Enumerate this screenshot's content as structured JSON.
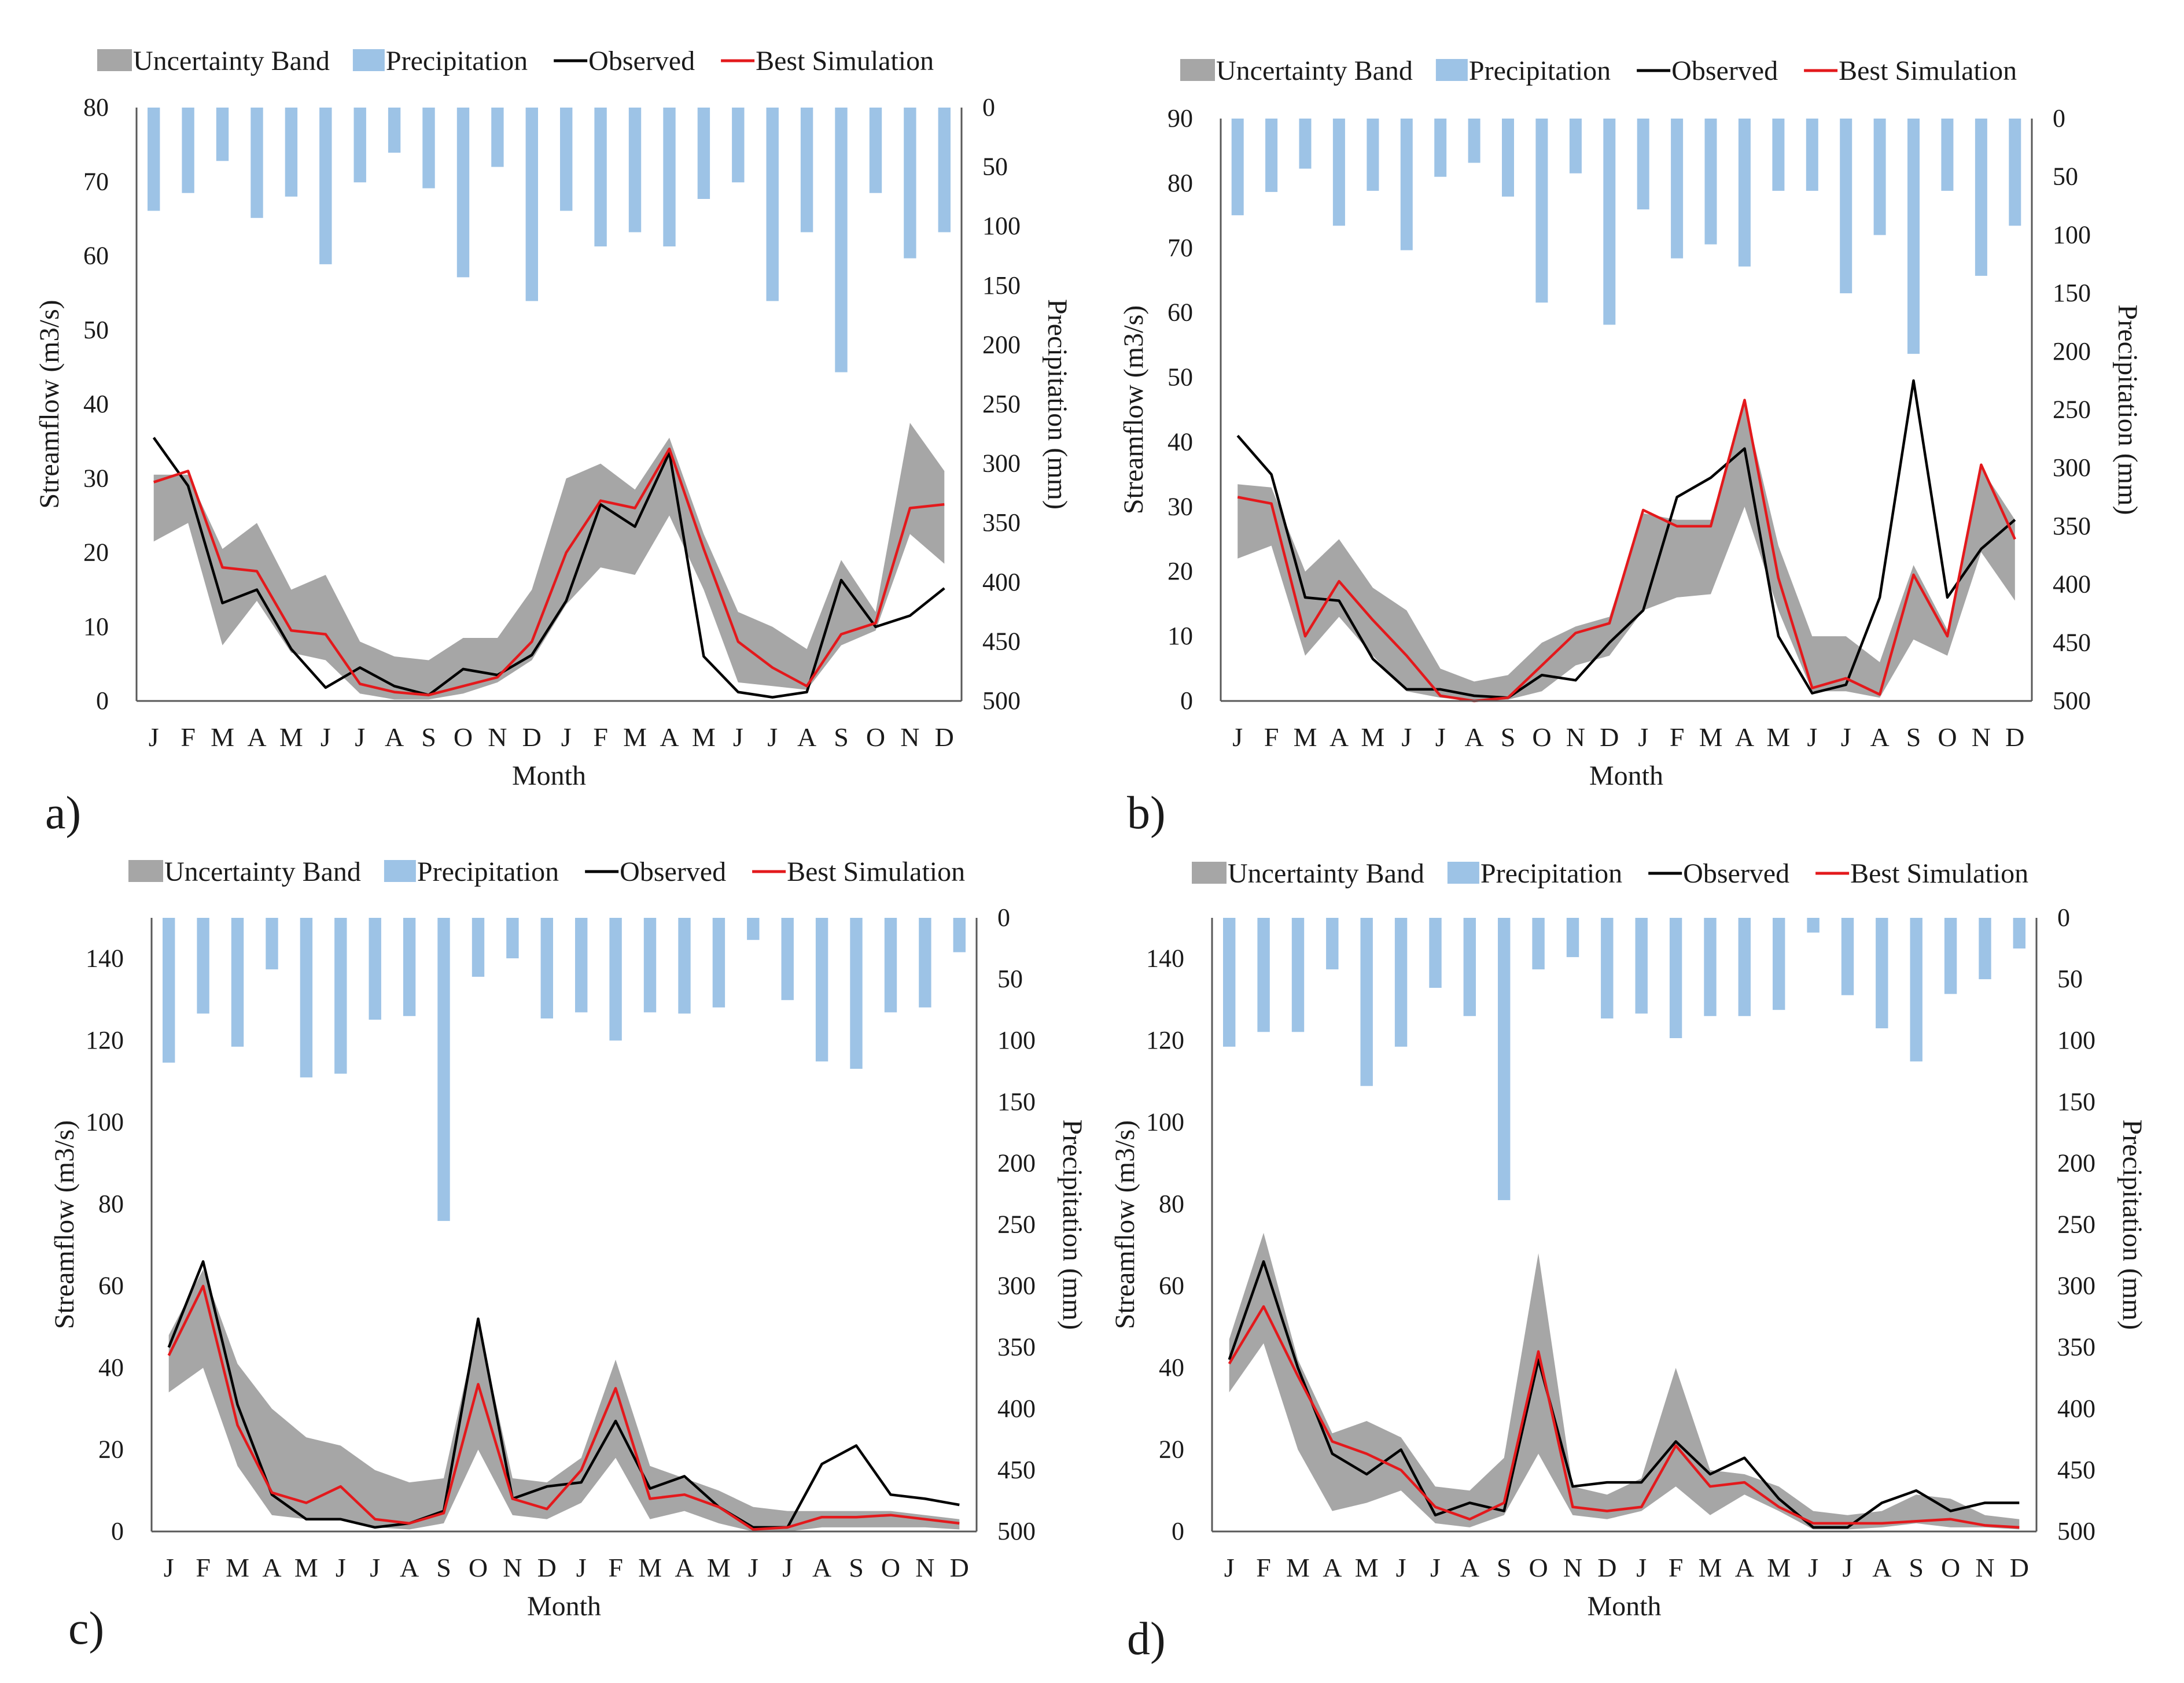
{
  "legend": {
    "band": "Uncertainty Band",
    "precip": "Precipitation",
    "observed": "Observed",
    "best": "Best Simulation"
  },
  "colors": {
    "band": "#a6a6a6",
    "precip": "#9dc3e6",
    "observed": "#000000",
    "best": "#e3191c"
  },
  "chart_data": [
    {
      "type": "line",
      "panel_label": "a)",
      "xlabel": "Month",
      "ylabel": "Streamflow (m3/s)",
      "y2label": "Precipitation (mm)",
      "categories": [
        "J",
        "F",
        "M",
        "A",
        "M",
        "J",
        "J",
        "A",
        "S",
        "O",
        "N",
        "D",
        "J",
        "F",
        "M",
        "A",
        "M",
        "J",
        "J",
        "A",
        "S",
        "O",
        "N",
        "D"
      ],
      "ylim": [
        0,
        80
      ],
      "yticks": [
        0,
        10,
        20,
        30,
        40,
        50,
        60,
        70,
        80
      ],
      "y2lim": [
        0,
        500
      ],
      "y2ticks": [
        0,
        50,
        100,
        150,
        200,
        250,
        300,
        350,
        400,
        450,
        500
      ],
      "precipitation": [
        87,
        72,
        45,
        93,
        75,
        132,
        63,
        38,
        68,
        143,
        50,
        163,
        87,
        117,
        105,
        117,
        77,
        63,
        163,
        105,
        223,
        72,
        127,
        105
      ],
      "observed": [
        35.5,
        29,
        13.2,
        15,
        7,
        1.8,
        4.5,
        2,
        0.8,
        4.3,
        3.5,
        6.2,
        13.5,
        26.5,
        23.5,
        33.5,
        6,
        1.2,
        0.5,
        1.2,
        16.3,
        10,
        11.5,
        15.2
      ],
      "best_simulation": [
        29.5,
        31,
        18,
        17.5,
        9.5,
        9,
        2.3,
        1.2,
        0.8,
        2,
        3.2,
        8,
        20,
        27,
        26,
        34,
        20.5,
        8,
        4.5,
        2,
        9,
        10.5,
        26,
        26.5
      ],
      "band_upper": [
        30.5,
        30.5,
        20.5,
        24,
        15,
        17,
        8,
        6,
        5.5,
        8.5,
        8.5,
        15,
        30,
        32,
        28.5,
        35.5,
        22.5,
        12,
        10,
        7,
        19,
        12,
        37.5,
        31
      ],
      "band_lower": [
        21.5,
        24,
        7.5,
        13.5,
        6.5,
        5.5,
        1,
        0.2,
        0.2,
        1,
        2.5,
        5.5,
        13,
        18,
        17,
        25,
        15,
        2.5,
        2,
        1.5,
        7.5,
        9.5,
        22.5,
        18.5
      ]
    },
    {
      "type": "line",
      "panel_label": "b)",
      "xlabel": "Month",
      "ylabel": "Streamflow (m3/s)",
      "y2label": "Precipitation (mm)",
      "categories": [
        "J",
        "F",
        "M",
        "A",
        "M",
        "J",
        "J",
        "A",
        "S",
        "O",
        "N",
        "D",
        "J",
        "F",
        "M",
        "A",
        "M",
        "J",
        "J",
        "A",
        "S",
        "O",
        "N",
        "D"
      ],
      "ylim": [
        0,
        90
      ],
      "yticks": [
        0,
        10,
        20,
        30,
        40,
        50,
        60,
        70,
        80,
        90
      ],
      "y2lim": [
        0,
        500
      ],
      "y2ticks": [
        0,
        50,
        100,
        150,
        200,
        250,
        300,
        350,
        400,
        450,
        500
      ],
      "precipitation": [
        83,
        63,
        43,
        92,
        62,
        113,
        50,
        38,
        67,
        158,
        47,
        177,
        78,
        120,
        108,
        127,
        62,
        62,
        150,
        100,
        202,
        62,
        135,
        92
      ],
      "observed": [
        41,
        35,
        16,
        15.5,
        6.5,
        1.8,
        1.8,
        0.8,
        0.5,
        4,
        3.2,
        9,
        14,
        31.5,
        34.5,
        39,
        10,
        1.2,
        2.5,
        16,
        49.5,
        16,
        23.5,
        28
      ],
      "best_simulation": [
        31.5,
        30.5,
        10,
        18.5,
        12.5,
        7,
        0.8,
        0,
        0.5,
        5.5,
        10.5,
        12,
        29.5,
        27,
        27,
        46.5,
        19,
        2,
        3.5,
        1,
        19.5,
        10,
        36.5,
        25
      ],
      "band_upper": [
        33.5,
        33,
        20,
        25,
        17.5,
        14,
        5,
        3,
        4,
        9,
        11.5,
        13,
        29,
        28,
        28,
        46,
        24,
        10,
        10,
        6,
        21,
        11,
        36,
        28
      ],
      "band_lower": [
        22,
        24,
        7,
        13,
        7,
        1.5,
        0.5,
        0,
        0.2,
        1.5,
        5.5,
        7,
        14,
        16,
        16.5,
        30,
        14,
        1.5,
        1.5,
        0.5,
        9.5,
        7,
        23,
        15.5
      ]
    },
    {
      "type": "line",
      "panel_label": "c)",
      "xlabel": "Month",
      "ylabel": "Streamflow (m3/s)",
      "y2label": "Precipitation (mm)",
      "categories": [
        "J",
        "F",
        "M",
        "A",
        "M",
        "J",
        "J",
        "A",
        "S",
        "O",
        "N",
        "D",
        "J",
        "F",
        "M",
        "A",
        "M",
        "J",
        "J",
        "A",
        "S",
        "O",
        "N",
        "D"
      ],
      "ylim": [
        0,
        150
      ],
      "yticks": [
        0,
        20,
        40,
        60,
        80,
        100,
        120,
        140
      ],
      "y2lim": [
        0,
        500
      ],
      "y2ticks": [
        0,
        50,
        100,
        150,
        200,
        250,
        300,
        350,
        400,
        450,
        500
      ],
      "precipitation": [
        118,
        78,
        105,
        42,
        130,
        127,
        83,
        80,
        247,
        48,
        33,
        82,
        77,
        100,
        77,
        78,
        73,
        18,
        67,
        117,
        123,
        77,
        73,
        28
      ],
      "observed": [
        45,
        66,
        31,
        9,
        3,
        3,
        1,
        2,
        5,
        52,
        8,
        11,
        12,
        27,
        10.5,
        13.5,
        6,
        1,
        1,
        16.5,
        21,
        9,
        8,
        6.5
      ],
      "best_simulation": [
        43,
        60,
        26,
        9.5,
        7,
        11,
        3,
        2,
        4.5,
        36,
        8,
        5.5,
        15,
        35,
        8,
        9,
        6,
        0.5,
        1,
        3.5,
        3.5,
        4,
        3,
        2
      ],
      "band_upper": [
        48,
        64,
        41,
        30,
        23,
        21,
        15,
        12,
        13,
        51,
        13,
        12,
        18,
        42,
        16,
        13,
        10,
        6,
        5,
        5,
        5,
        5,
        4,
        3
      ],
      "band_lower": [
        34,
        40,
        16,
        4,
        3,
        3,
        1,
        0.5,
        2,
        20,
        4,
        3,
        7,
        18,
        3,
        5,
        2,
        0,
        0,
        1,
        1,
        1,
        1,
        0.5
      ]
    },
    {
      "type": "line",
      "panel_label": "d)",
      "xlabel": "Month",
      "ylabel": "Streamflow (m3/s)",
      "y2label": "Precipitation (mm)",
      "categories": [
        "J",
        "F",
        "M",
        "A",
        "M",
        "J",
        "J",
        "A",
        "S",
        "O",
        "N",
        "D",
        "J",
        "F",
        "M",
        "A",
        "M",
        "J",
        "J",
        "A",
        "S",
        "O",
        "N",
        "D"
      ],
      "ylim": [
        0,
        150
      ],
      "yticks": [
        0,
        20,
        40,
        60,
        80,
        100,
        120,
        140
      ],
      "y2lim": [
        0,
        500
      ],
      "y2ticks": [
        0,
        50,
        100,
        150,
        200,
        250,
        300,
        350,
        400,
        450,
        500
      ],
      "precipitation": [
        105,
        93,
        93,
        42,
        137,
        105,
        57,
        80,
        230,
        42,
        32,
        82,
        78,
        98,
        80,
        80,
        75,
        12,
        63,
        90,
        117,
        62,
        50,
        25
      ],
      "observed": [
        42,
        66,
        40,
        19,
        14,
        20,
        4,
        7,
        5,
        42,
        11,
        12,
        12,
        22,
        14,
        18,
        8,
        1,
        1,
        7,
        10,
        5,
        7,
        7
      ],
      "best_simulation": [
        41,
        55,
        38,
        22,
        19,
        15,
        6,
        3,
        7,
        44,
        6,
        5,
        6,
        21,
        11,
        12,
        6,
        2,
        2,
        2,
        2.5,
        3,
        1.5,
        1
      ],
      "band_upper": [
        47,
        73,
        42,
        24,
        27,
        23,
        11,
        10,
        18,
        68,
        11,
        9,
        13,
        40,
        15,
        14,
        11,
        5,
        4,
        5,
        9,
        8,
        4,
        3
      ],
      "band_lower": [
        34,
        46,
        20,
        5,
        7,
        10,
        2,
        1,
        4,
        19,
        4,
        3,
        5,
        11,
        4,
        9,
        5,
        0.5,
        0.5,
        1,
        2,
        1,
        1,
        0.5
      ]
    }
  ]
}
